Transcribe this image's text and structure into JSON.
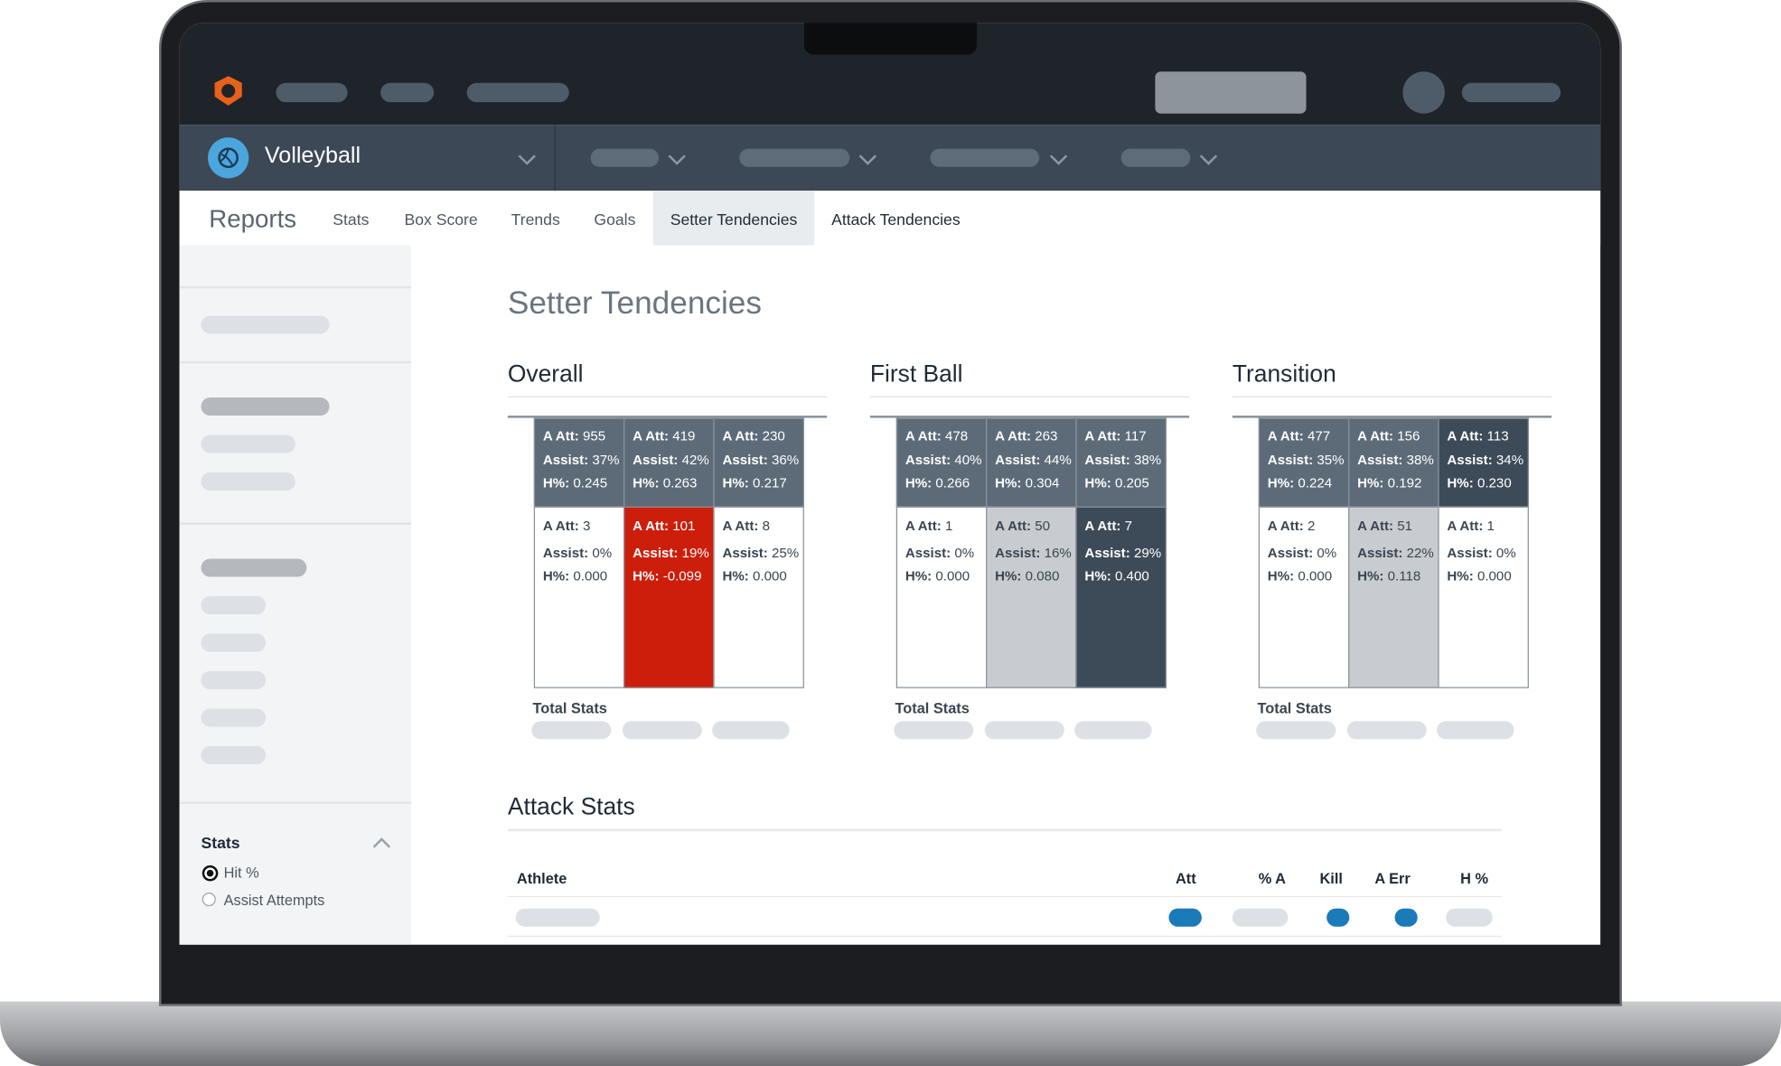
{
  "app": {
    "sport": "Volleyball"
  },
  "tabs": {
    "brand": "Reports",
    "items": [
      {
        "label": "Stats",
        "active": false
      },
      {
        "label": "Box Score",
        "active": false
      },
      {
        "label": "Trends",
        "active": false
      },
      {
        "label": "Goals",
        "active": false
      },
      {
        "label": "Setter Tendencies",
        "active": true
      },
      {
        "label": "Attack Tendencies",
        "active": false
      }
    ]
  },
  "sidebar": {
    "section": "Stats",
    "options": [
      {
        "label": "Hit %",
        "selected": true
      },
      {
        "label": "Assist Attempts",
        "selected": false
      }
    ]
  },
  "page": {
    "title": "Setter Tendencies"
  },
  "labels": {
    "att": "A Att:",
    "assist": "Assist:",
    "hit": "H%:",
    "total": "Total Stats"
  },
  "panels": [
    {
      "title": "Overall",
      "rows": [
        [
          {
            "att": "955",
            "assist": "37%",
            "hit": "0.245",
            "color": "#5d6b79"
          },
          {
            "att": "419",
            "assist": "42%",
            "hit": "0.263",
            "color": "#5d6b79"
          },
          {
            "att": "230",
            "assist": "36%",
            "hit": "0.217",
            "color": "#5d6b79"
          }
        ],
        [
          {
            "att": "3",
            "assist": "0%",
            "hit": "0.000",
            "color": "#ffffff"
          },
          {
            "att": "101",
            "assist": "19%",
            "hit": "-0.099",
            "color": "#cc1e0b"
          },
          {
            "att": "8",
            "assist": "25%",
            "hit": "0.000",
            "color": "#ffffff"
          }
        ]
      ]
    },
    {
      "title": "First Ball",
      "rows": [
        [
          {
            "att": "478",
            "assist": "40%",
            "hit": "0.266",
            "color": "#5d6b79"
          },
          {
            "att": "263",
            "assist": "44%",
            "hit": "0.304",
            "color": "#5d6b79"
          },
          {
            "att": "117",
            "assist": "38%",
            "hit": "0.205",
            "color": "#5d6b79"
          }
        ],
        [
          {
            "att": "1",
            "assist": "0%",
            "hit": "0.000",
            "color": "#ffffff"
          },
          {
            "att": "50",
            "assist": "16%",
            "hit": "0.080",
            "color": "#c8ccd0"
          },
          {
            "att": "7",
            "assist": "29%",
            "hit": "0.400",
            "color": "#3d4a58"
          }
        ]
      ]
    },
    {
      "title": "Transition",
      "rows": [
        [
          {
            "att": "477",
            "assist": "35%",
            "hit": "0.224",
            "color": "#5d6b79"
          },
          {
            "att": "156",
            "assist": "38%",
            "hit": "0.192",
            "color": "#5d6b79"
          },
          {
            "att": "113",
            "assist": "34%",
            "hit": "0.230",
            "color": "#3d4a58"
          }
        ],
        [
          {
            "att": "2",
            "assist": "0%",
            "hit": "0.000",
            "color": "#ffffff"
          },
          {
            "att": "51",
            "assist": "22%",
            "hit": "0.118",
            "color": "#c8ccd0"
          },
          {
            "att": "1",
            "assist": "0%",
            "hit": "0.000",
            "color": "#ffffff"
          }
        ]
      ]
    }
  ],
  "attack": {
    "title": "Attack Stats",
    "columns": [
      "Athlete",
      "Att",
      "% A",
      "Kill",
      "A Err",
      "H %"
    ]
  }
}
